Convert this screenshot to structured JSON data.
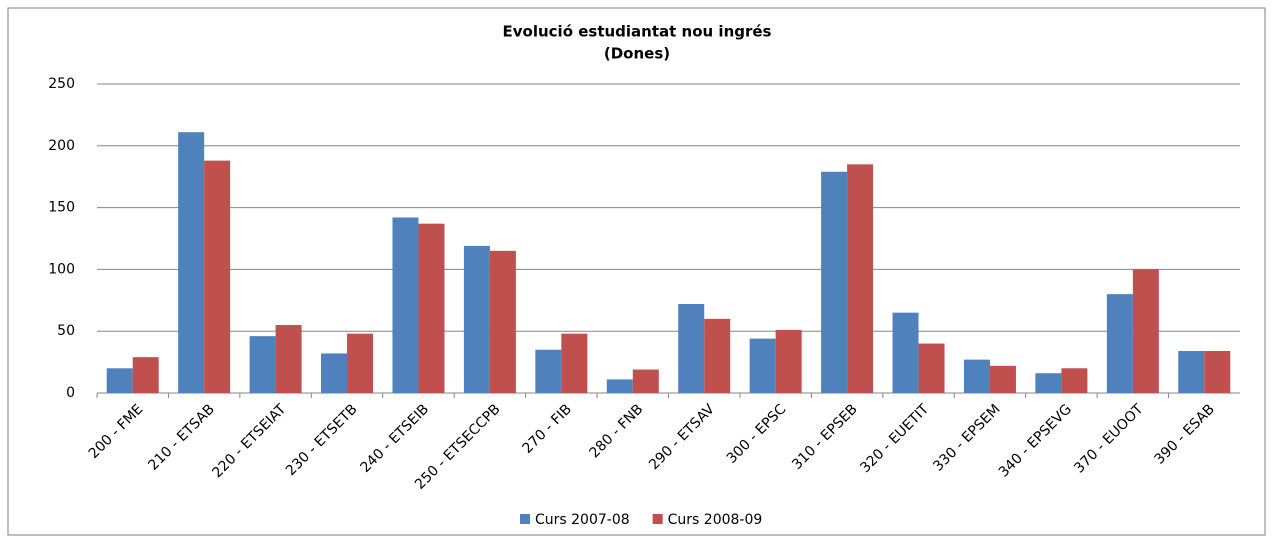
{
  "chart_data": {
    "type": "bar",
    "title": "Evolució estudiantat nou ingrés",
    "subtitle": "(Dones)",
    "categories": [
      "200 - FME",
      "210 - ETSAB",
      "220 - ETSEIAT",
      "230 - ETSETB",
      "240 - ETSEIB",
      "250 - ETSECCPB",
      "270 - FIB",
      "280 - FNB",
      "290 - ETSAV",
      "300 - EPSC",
      "310 - EPSEB",
      "320 - EUETIT",
      "330 - EPSEM",
      "340 - EPSEVG",
      "370 - EUOOT",
      "390 - ESAB"
    ],
    "series": [
      {
        "name": "Curs 2007-08",
        "color": "#4f81bd",
        "values": [
          20,
          211,
          46,
          32,
          142,
          119,
          35,
          11,
          72,
          44,
          179,
          65,
          27,
          16,
          80,
          34
        ]
      },
      {
        "name": "Curs 2008-09",
        "color": "#c0504d",
        "values": [
          29,
          188,
          55,
          48,
          137,
          115,
          48,
          19,
          60,
          51,
          185,
          40,
          22,
          20,
          100,
          34
        ]
      }
    ],
    "ylim": [
      0,
      250
    ],
    "yticks": [
      0,
      50,
      100,
      150,
      200,
      250
    ],
    "grid": true,
    "legend": "bottom"
  }
}
